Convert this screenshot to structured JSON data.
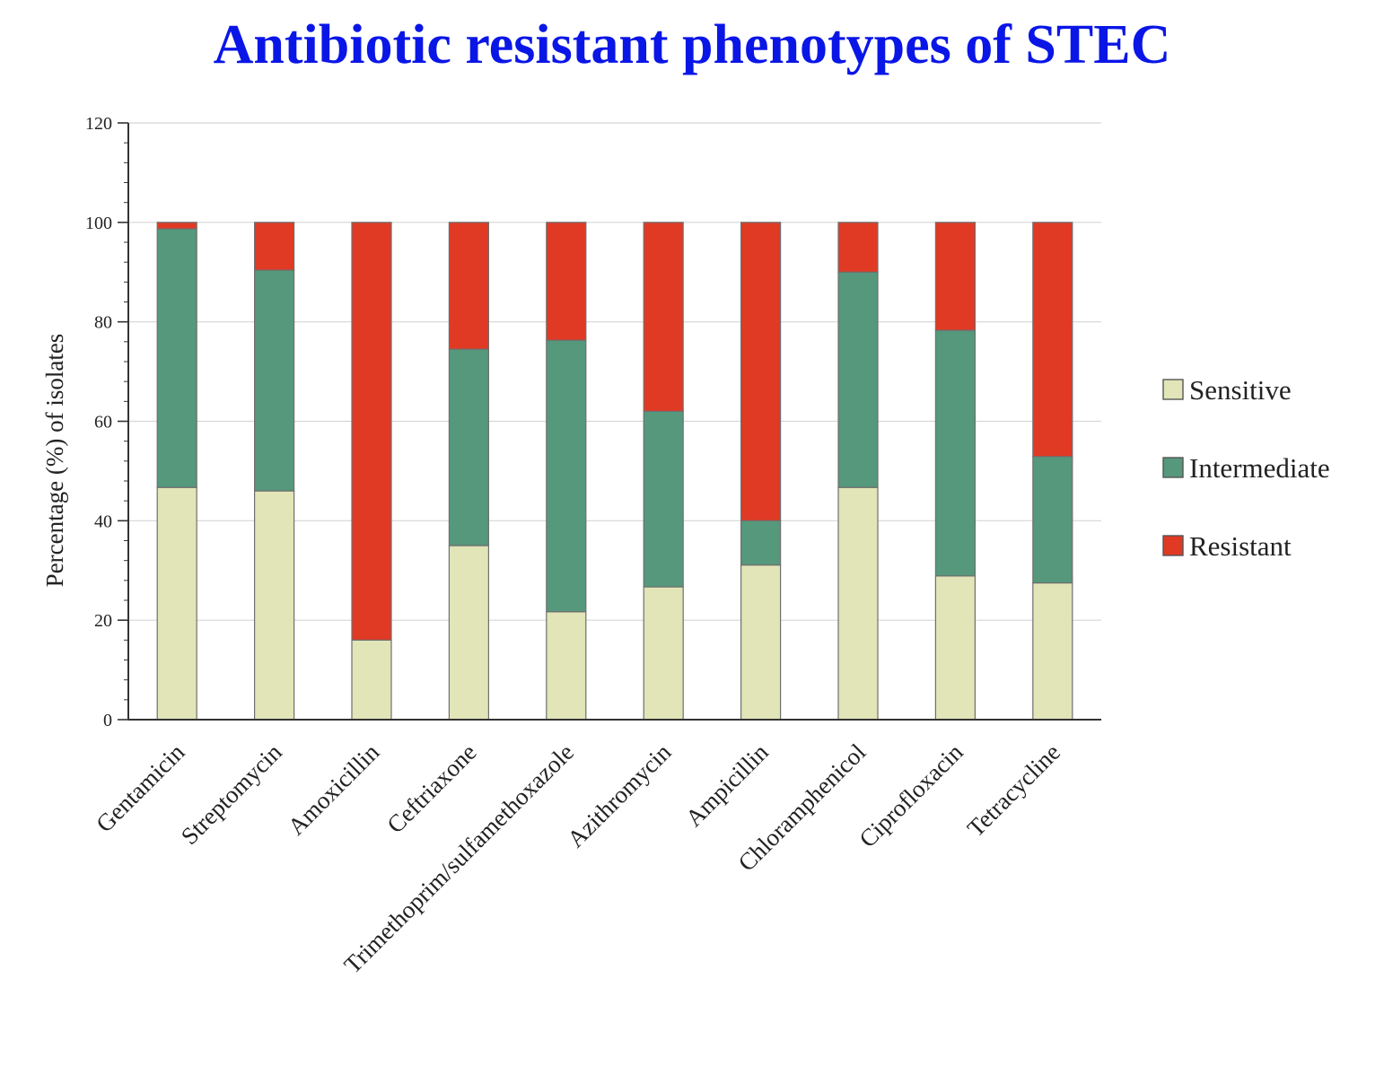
{
  "chart_data": {
    "type": "bar",
    "stacked": true,
    "title": "Antibiotic resistant phenotypes of STEC",
    "xlabel": "",
    "ylabel": "Percentage (%) of isolates",
    "ylim": [
      0,
      120
    ],
    "yticks": [
      "0",
      "20",
      "40",
      "60",
      "80",
      "100",
      "120"
    ],
    "grid": true,
    "legend_position": "right",
    "categories": [
      "Gentamicin",
      "Streptomycin",
      "Amoxicillin",
      "Ceftriaxone",
      "Trimethoprim/sulfamethoxazole",
      "Azithromycin",
      "Ampicillin",
      "Chloramphenicol",
      "Ciprofloxacin",
      "Tetracycline"
    ],
    "series": [
      {
        "name": "Sensitive",
        "color": "#e1e5b7",
        "values": [
          46.7,
          46.0,
          16.0,
          35.0,
          21.7,
          26.7,
          31.1,
          46.7,
          28.9,
          27.5
        ]
      },
      {
        "name": "Intermediate",
        "color": "#55987c",
        "values": [
          52.0,
          44.4,
          0,
          39.5,
          54.6,
          35.3,
          8.9,
          43.3,
          49.4,
          25.4
        ]
      },
      {
        "name": "Resistant",
        "color": "#e03a24",
        "values": [
          1.3,
          9.6,
          84.0,
          25.5,
          23.7,
          38.0,
          60.0,
          10.0,
          21.7,
          47.1
        ]
      }
    ]
  }
}
